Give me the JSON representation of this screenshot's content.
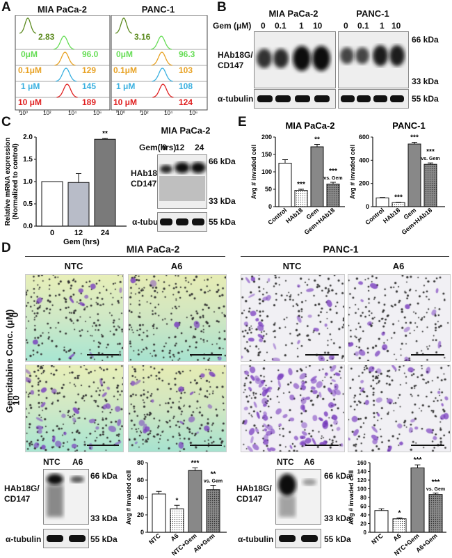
{
  "panel_letters": {
    "A": "A",
    "B": "B",
    "C": "C",
    "D": "D",
    "E": "E"
  },
  "colors": {
    "dark_green": "#5b8a1e",
    "light_green": "#66dd55",
    "orange": "#e8a224",
    "cyan": "#3ab0e0",
    "red": "#e02020"
  },
  "A": {
    "left": {
      "title": "MIA PaCa-2",
      "ctrl": "2.83",
      "rows": [
        {
          "label": "0μM",
          "value": "96.0"
        },
        {
          "label": "0.1μM",
          "value": "129"
        },
        {
          "label": "1 μM",
          "value": "145"
        },
        {
          "label": "10 μM",
          "value": "189"
        }
      ]
    },
    "right": {
      "title": "PANC-1",
      "ctrl": "3.16",
      "rows": [
        {
          "label": "0μM",
          "value": "96.3"
        },
        {
          "label": "0.1μM",
          "value": "103"
        },
        {
          "label": "1 μM",
          "value": "108"
        },
        {
          "label": "10 μM",
          "value": "124"
        }
      ]
    },
    "ticks": [
      "10⁰",
      "10²",
      "10⁴",
      "10⁶"
    ]
  },
  "B": {
    "title_left": "MIA PaCa-2",
    "title_right": "PANC-1",
    "gem_label": "Gem (μM)",
    "lanes_left": [
      "0",
      "0.1",
      "1",
      "10"
    ],
    "lanes_right": [
      "0",
      "0.1",
      "1",
      "10"
    ],
    "protein": "HAb18G/\nCD147",
    "loading": "α-tubulin",
    "kda_66": "66 kDa",
    "kda_33": "33 kDa",
    "kda_55": "55 kDa"
  },
  "C": {
    "chart_data": {
      "type": "bar",
      "categories": [
        "0",
        "12",
        "24"
      ],
      "values": [
        1.0,
        0.98,
        1.95
      ],
      "errors": [
        0,
        0.2,
        0.02
      ],
      "xlabel": "Gem (hrs)",
      "ylabel": "Relative mRNA expression\n(Normalized to control)",
      "ylim": [
        0,
        2.0
      ],
      "yticks": [
        "0.0",
        "0.5",
        "1.0",
        "1.5",
        "2.0"
      ],
      "annotations": [
        "",
        "",
        "**"
      ]
    },
    "blot": {
      "title": "MIA PaCa-2",
      "gem_label": "Gem(hrs)",
      "lanes": [
        "0",
        "12",
        "24"
      ],
      "protein": "HAb18G/\nCD147",
      "loading": "α-tubulin",
      "kda_66": "66 kDa",
      "kda_33": "33 kDa",
      "kda_55": "55 kDa"
    }
  },
  "E": {
    "chart_data": [
      {
        "type": "bar",
        "title": "MIA PaCa-2",
        "ylabel": "Avg # invaded cell",
        "ylim": [
          0,
          200
        ],
        "yticks": [
          "0",
          "50",
          "100",
          "150",
          "200"
        ],
        "categories": [
          "Control",
          "HAb18",
          "Gem",
          "Gem+HAb18"
        ],
        "values": [
          125,
          47,
          172,
          65
        ],
        "errors": [
          10,
          3,
          7,
          5
        ],
        "annotations": [
          "",
          "***",
          "**",
          "***\nvs. Gem"
        ]
      },
      {
        "type": "bar",
        "title": "PANC-1",
        "ylabel": "Avg # invaded cell",
        "ylim": [
          0,
          600
        ],
        "yticks": [
          "0",
          "200",
          "400",
          "600"
        ],
        "categories": [
          "Control",
          "HAb18",
          "Gem",
          "Gem+HAb18"
        ],
        "values": [
          75,
          35,
          540,
          365
        ],
        "errors": [
          4,
          3,
          15,
          12
        ],
        "annotations": [
          "",
          "***",
          "***",
          "***\nvs. Gem"
        ]
      }
    ]
  },
  "D": {
    "title_left": "MIA PaCa-2",
    "title_right": "PANC-1",
    "col_ntc": "NTC",
    "col_a6": "A6",
    "ylabel": "Gemcitabine Conc. (μM)",
    "row_0": "0",
    "row_10": "10",
    "blot": {
      "lanes": [
        "NTC",
        "A6"
      ],
      "protein": "HAb18G/\nCD147",
      "loading": "α-tubulin",
      "kda_66": "66 kDa",
      "kda_33": "33 kDa",
      "kda_55": "55 kDa"
    },
    "chart_data": [
      {
        "type": "bar",
        "ylabel": "Avg # invaded cell",
        "ylim": [
          0,
          80
        ],
        "yticks": [
          "0",
          "20",
          "40",
          "60",
          "80"
        ],
        "categories": [
          "NTC",
          "A6",
          "NTC+Gem",
          "A6+Gem"
        ],
        "values": [
          44,
          27,
          71,
          49
        ],
        "errors": [
          3,
          4,
          3,
          5
        ],
        "annotations": [
          "",
          "*",
          "***",
          "**\nvs. Gem"
        ]
      },
      {
        "type": "bar",
        "ylabel": "Avg # invaded cell",
        "ylim": [
          0,
          160
        ],
        "yticks": [
          "0",
          "20",
          "40",
          "60",
          "80",
          "100",
          "120",
          "140",
          "160"
        ],
        "categories": [
          "NTC",
          "A6",
          "NTC+Gem",
          "A6+Gem"
        ],
        "values": [
          50,
          31,
          148,
          87
        ],
        "errors": [
          4,
          2,
          7,
          3
        ],
        "annotations": [
          "",
          "*",
          "***",
          "***\nvs. Gem"
        ]
      }
    ]
  }
}
